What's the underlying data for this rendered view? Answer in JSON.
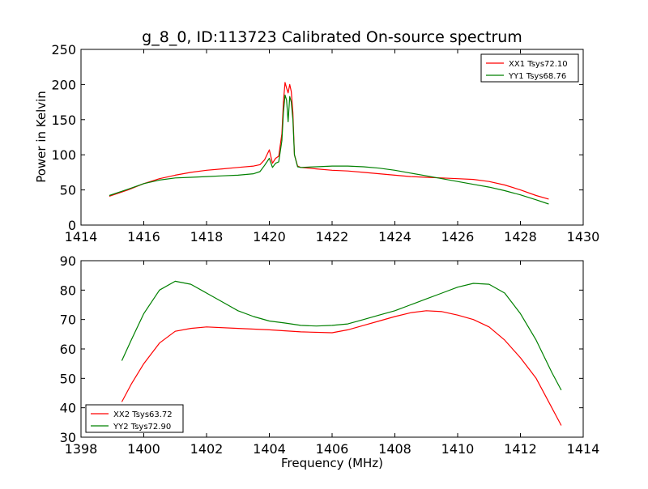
{
  "chart_data": [
    {
      "type": "line",
      "title": "g_8_0, ID:113723 Calibrated On-source spectrum",
      "xlabel": "",
      "ylabel": "Power in Kelvin",
      "xlim": [
        1414,
        1430
      ],
      "ylim": [
        0,
        250
      ],
      "xticks": [
        "1414",
        "1416",
        "1418",
        "1420",
        "1422",
        "1424",
        "1426",
        "1428",
        "1430"
      ],
      "yticks": [
        "0",
        "50",
        "100",
        "150",
        "200",
        "250"
      ],
      "grid": false,
      "legend_position": "top-right",
      "series": [
        {
          "name": "XX1 Tsys72.10",
          "color": "#ff0000",
          "x": [
            1414.9,
            1415.5,
            1416.0,
            1416.5,
            1417.0,
            1417.5,
            1418.0,
            1418.5,
            1419.0,
            1419.5,
            1419.7,
            1419.85,
            1420.0,
            1420.1,
            1420.2,
            1420.3,
            1420.4,
            1420.45,
            1420.5,
            1420.55,
            1420.6,
            1420.65,
            1420.7,
            1420.75,
            1420.8,
            1420.9,
            1421.0,
            1421.5,
            1422.0,
            1422.5,
            1423.0,
            1423.5,
            1424.0,
            1424.5,
            1425.0,
            1425.5,
            1426.0,
            1426.5,
            1427.0,
            1427.5,
            1428.0,
            1428.5,
            1428.9
          ],
          "y": [
            41,
            50,
            59,
            66,
            71,
            75,
            78,
            80,
            82,
            84,
            86,
            93,
            107,
            88,
            95,
            98,
            130,
            175,
            203,
            195,
            188,
            200,
            190,
            160,
            100,
            84,
            82,
            80,
            78,
            77,
            75,
            73,
            71,
            69,
            68,
            67,
            66,
            65,
            62,
            57,
            50,
            42,
            37
          ]
        },
        {
          "name": "YY1 Tsys68.76",
          "color": "#008000",
          "x": [
            1414.9,
            1415.5,
            1416.0,
            1416.5,
            1417.0,
            1417.5,
            1418.0,
            1418.5,
            1419.0,
            1419.5,
            1419.7,
            1419.85,
            1420.0,
            1420.1,
            1420.2,
            1420.3,
            1420.4,
            1420.45,
            1420.5,
            1420.55,
            1420.6,
            1420.65,
            1420.7,
            1420.75,
            1420.8,
            1420.9,
            1421.0,
            1421.5,
            1422.0,
            1422.5,
            1423.0,
            1423.5,
            1424.0,
            1424.5,
            1425.0,
            1425.5,
            1426.0,
            1426.5,
            1427.0,
            1427.5,
            1428.0,
            1428.5,
            1428.9
          ],
          "y": [
            42,
            51,
            59,
            64,
            67,
            68,
            69,
            70,
            71,
            73,
            76,
            85,
            95,
            82,
            88,
            90,
            120,
            160,
            185,
            178,
            147,
            183,
            175,
            150,
            100,
            83,
            82,
            83,
            84,
            84,
            83,
            81,
            78,
            74,
            70,
            66,
            62,
            58,
            54,
            49,
            43,
            36,
            30
          ]
        }
      ]
    },
    {
      "type": "line",
      "title": "",
      "xlabel": "Frequency (MHz)",
      "ylabel": "",
      "xlim": [
        1398,
        1414
      ],
      "ylim": [
        30,
        90
      ],
      "xticks": [
        "1398",
        "1400",
        "1402",
        "1404",
        "1406",
        "1408",
        "1410",
        "1412",
        "1414"
      ],
      "yticks": [
        "30",
        "40",
        "50",
        "60",
        "70",
        "80",
        "90"
      ],
      "grid": false,
      "legend_position": "bottom-left",
      "series": [
        {
          "name": "XX2 Tsys63.72",
          "color": "#ff0000",
          "x": [
            1399.3,
            1399.6,
            1400.0,
            1400.5,
            1401.0,
            1401.5,
            1402.0,
            1403.0,
            1404.0,
            1405.0,
            1406.0,
            1406.5,
            1407.0,
            1407.5,
            1408.0,
            1408.5,
            1409.0,
            1409.5,
            1410.0,
            1410.5,
            1411.0,
            1411.5,
            1412.0,
            1412.5,
            1413.0,
            1413.3
          ],
          "y": [
            42,
            48,
            55,
            62,
            66,
            67,
            67.5,
            67,
            66.5,
            65.8,
            65.5,
            66.5,
            68,
            69.5,
            71,
            72.3,
            73,
            72.7,
            71.5,
            70,
            67.5,
            63,
            57,
            50,
            40,
            34
          ]
        },
        {
          "name": "YY2 Tsys72.90",
          "color": "#008000",
          "x": [
            1399.3,
            1399.6,
            1400.0,
            1400.5,
            1401.0,
            1401.5,
            1402.0,
            1402.5,
            1403.0,
            1403.5,
            1404.0,
            1404.5,
            1405.0,
            1405.5,
            1406.0,
            1406.5,
            1407.0,
            1407.5,
            1408.0,
            1408.5,
            1409.0,
            1409.5,
            1410.0,
            1410.5,
            1411.0,
            1411.5,
            1412.0,
            1412.5,
            1413.0,
            1413.3
          ],
          "y": [
            56,
            63,
            72,
            80,
            83,
            82,
            79,
            76,
            73,
            71,
            69.5,
            68.8,
            68,
            67.8,
            68,
            68.5,
            70,
            71.5,
            73,
            75,
            77,
            79,
            81,
            82.3,
            82,
            79,
            72,
            63,
            52,
            46
          ]
        }
      ]
    }
  ]
}
